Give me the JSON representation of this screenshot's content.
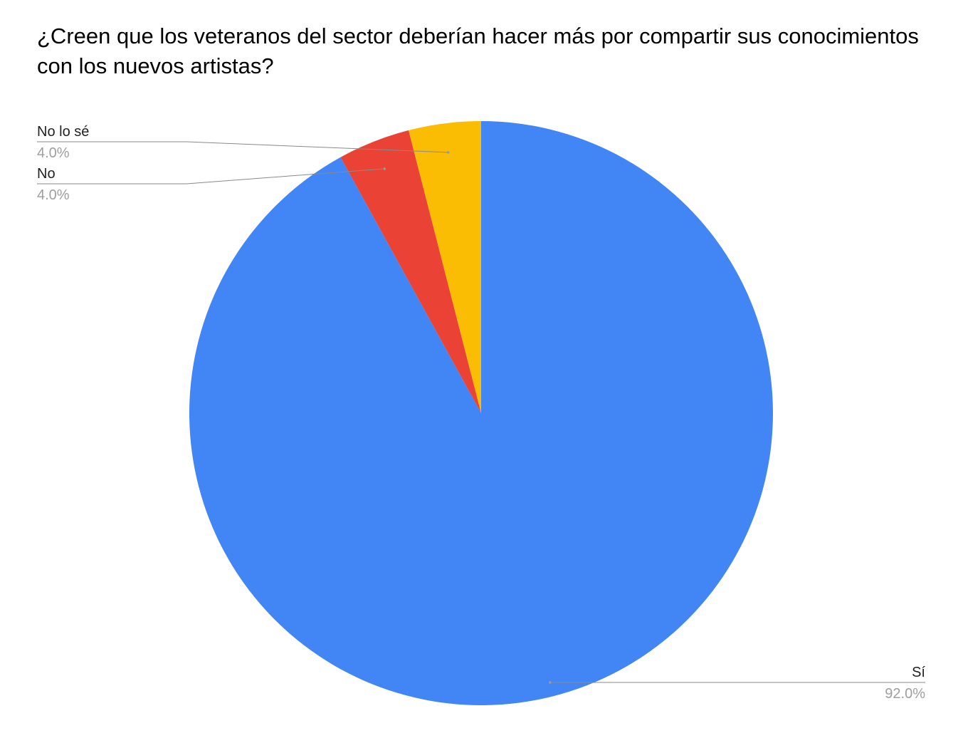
{
  "chart_data": {
    "type": "pie",
    "title": "¿Creen que los veteranos del sector deberían hacer más por compartir sus conocimientos con los nuevos artistas?",
    "slices": [
      {
        "label": "Sí",
        "value": 92.0,
        "percent_label": "92.0%",
        "color": "#4285f4"
      },
      {
        "label": "No",
        "value": 4.0,
        "percent_label": "4.0%",
        "color": "#ea4335"
      },
      {
        "label": "No lo sé",
        "value": 4.0,
        "percent_label": "4.0%",
        "color": "#fbbc04"
      }
    ],
    "start_angle": "12 o'clock",
    "direction": "clockwise",
    "legend": "none (callout labels)"
  }
}
